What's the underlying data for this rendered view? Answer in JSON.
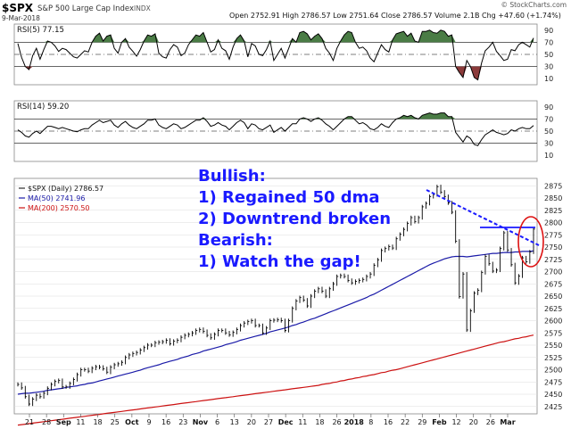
{
  "header": {
    "symbol": "$SPX",
    "name": "S&P 500 Large Cap Index",
    "exchange": "INDX",
    "date": "9-Mar-2018",
    "ohlc": "Open 2752.91  High 2786.57  Low 2751.64  Close 2786.57  Volume 2.1B  Chg +47.60 (+1.74%)",
    "watermark": "© StockCharts.com"
  },
  "colors": {
    "price": "#000000",
    "ma50": "#1a1aa8",
    "ma200": "#cc1111",
    "rsi_fill": "#4a7c45",
    "rsi_low_fill": "#8b3a3a",
    "annotation": "#1a1aff",
    "circle": "#dd1111",
    "grid": "#b8b8b8",
    "panel_bg": "#ffffff"
  },
  "annotation": {
    "lines": [
      "Bullish:",
      "1) Regained 50 dma",
      "2) Downtrend broken",
      "Bearish:",
      "1) Watch the gap!"
    ]
  },
  "x_labels": [
    "21",
    "28",
    "Sep",
    "11",
    "18",
    "25",
    "Oct",
    "9",
    "16",
    "23",
    "Nov",
    "6",
    "13",
    "20",
    "27",
    "Dec",
    "11",
    "18",
    "26",
    "2018",
    "8",
    "16",
    "22",
    "29",
    "Feb",
    "12",
    "20",
    "26",
    "Mar"
  ],
  "chart_data": [
    {
      "type": "line",
      "panel": "rsi5",
      "legend": "RSI(5) 77.15",
      "y_ticks": [
        10,
        30,
        50,
        70,
        90
      ],
      "ylim": [
        0,
        100
      ],
      "reference_lines": [
        30,
        50,
        70
      ],
      "values": [
        68,
        45,
        30,
        25,
        48,
        60,
        42,
        58,
        72,
        70,
        64,
        55,
        60,
        58,
        52,
        46,
        44,
        50,
        56,
        54,
        70,
        80,
        85,
        72,
        80,
        82,
        60,
        52,
        70,
        76,
        62,
        55,
        47,
        58,
        72,
        82,
        80,
        84,
        52,
        46,
        44,
        58,
        66,
        62,
        48,
        52,
        66,
        74,
        82,
        80,
        86,
        70,
        54,
        58,
        74,
        60,
        56,
        42,
        62,
        76,
        82,
        72,
        46,
        68,
        64,
        50,
        48,
        58,
        72,
        40,
        50,
        60,
        44,
        60,
        76,
        70,
        86,
        88,
        84,
        74,
        80,
        84,
        76,
        60,
        52,
        40,
        60,
        72,
        82,
        88,
        86,
        70,
        60,
        62,
        56,
        44,
        38,
        52,
        66,
        58,
        54,
        74,
        84,
        86,
        88,
        80,
        85,
        72,
        70,
        88,
        88,
        90,
        86,
        85,
        90,
        88,
        80,
        82,
        30,
        20,
        12,
        40,
        30,
        12,
        8,
        36,
        56,
        62,
        70,
        55,
        48,
        40,
        42,
        58,
        56,
        66,
        70,
        66,
        62,
        77
      ],
      "value": 77.15
    },
    {
      "type": "line",
      "panel": "rsi14",
      "legend": "RSI(14) 59.20",
      "y_ticks": [
        10,
        30,
        50,
        70,
        90
      ],
      "ylim": [
        0,
        100
      ],
      "reference_lines": [
        30,
        50,
        70
      ],
      "values": [
        52,
        48,
        42,
        40,
        46,
        50,
        46,
        52,
        58,
        58,
        56,
        54,
        56,
        54,
        52,
        50,
        49,
        52,
        54,
        54,
        60,
        64,
        68,
        64,
        66,
        68,
        60,
        56,
        62,
        66,
        60,
        56,
        54,
        58,
        62,
        68,
        68,
        70,
        60,
        56,
        54,
        58,
        62,
        60,
        54,
        56,
        60,
        64,
        68,
        68,
        72,
        66,
        58,
        60,
        64,
        60,
        58,
        52,
        58,
        64,
        68,
        64,
        54,
        62,
        60,
        54,
        52,
        56,
        60,
        48,
        52,
        56,
        50,
        56,
        62,
        62,
        70,
        72,
        70,
        66,
        70,
        72,
        68,
        62,
        58,
        52,
        58,
        64,
        70,
        74,
        74,
        68,
        62,
        64,
        60,
        54,
        52,
        56,
        62,
        58,
        56,
        64,
        70,
        72,
        76,
        74,
        76,
        72,
        70,
        76,
        78,
        80,
        78,
        78,
        80,
        80,
        74,
        74,
        48,
        40,
        32,
        42,
        38,
        28,
        26,
        36,
        44,
        48,
        52,
        48,
        46,
        44,
        46,
        52,
        50,
        54,
        56,
        54,
        54,
        59.2
      ],
      "value": 59.2
    },
    {
      "type": "line",
      "panel": "price",
      "legend": [
        "$SPX (Daily) 2786.57",
        "MA(50) 2741.96",
        "MA(200) 2570.50"
      ],
      "y_ticks": [
        2425,
        2450,
        2475,
        2500,
        2525,
        2550,
        2575,
        2600,
        2625,
        2650,
        2675,
        2700,
        2725,
        2750,
        2775,
        2800,
        2825,
        2850,
        2875
      ],
      "ylim": [
        2410,
        2890
      ],
      "series": [
        {
          "name": "$SPX (Daily) 2786.57",
          "values": [
            2470,
            2463,
            2445,
            2430,
            2440,
            2448,
            2445,
            2452,
            2462,
            2470,
            2476,
            2478,
            2465,
            2465,
            2472,
            2480,
            2490,
            2500,
            2500,
            2497,
            2503,
            2506,
            2505,
            2502,
            2495,
            2505,
            2510,
            2512,
            2515,
            2525,
            2530,
            2533,
            2535,
            2540,
            2545,
            2550,
            2550,
            2555,
            2556,
            2557,
            2560,
            2553,
            2558,
            2560,
            2566,
            2570,
            2572,
            2575,
            2580,
            2582,
            2578,
            2570,
            2565,
            2572,
            2580,
            2580,
            2575,
            2571,
            2576,
            2582,
            2590,
            2595,
            2598,
            2600,
            2590,
            2590,
            2575,
            2585,
            2600,
            2601,
            2602,
            2600,
            2580,
            2600,
            2625,
            2640,
            2647,
            2642,
            2630,
            2650,
            2660,
            2665,
            2660,
            2650,
            2665,
            2675,
            2690,
            2692,
            2690,
            2682,
            2677,
            2680,
            2682,
            2684,
            2690,
            2695,
            2713,
            2724,
            2743,
            2747,
            2751,
            2748,
            2767,
            2776,
            2786,
            2798,
            2810,
            2802,
            2810,
            2832,
            2839,
            2853,
            2857,
            2873,
            2862,
            2853,
            2840,
            2821,
            2762,
            2649,
            2695,
            2581,
            2620,
            2656,
            2662,
            2698,
            2731,
            2716,
            2701,
            2703,
            2747,
            2779,
            2744,
            2714,
            2677,
            2691,
            2728,
            2720,
            2740,
            2786.57
          ]
        },
        {
          "name": "MA(50) 2741.96",
          "values": [
            2450,
            2451,
            2452,
            2452,
            2453,
            2454,
            2455,
            2456,
            2458,
            2459,
            2460,
            2461,
            2462,
            2464,
            2465,
            2466,
            2467,
            2469,
            2470,
            2472,
            2473,
            2475,
            2477,
            2479,
            2481,
            2483,
            2485,
            2487,
            2489,
            2491,
            2493,
            2495,
            2497,
            2499,
            2502,
            2504,
            2506,
            2508,
            2510,
            2513,
            2515,
            2517,
            2519,
            2521,
            2524,
            2526,
            2528,
            2531,
            2533,
            2535,
            2538,
            2540,
            2542,
            2544,
            2546,
            2548,
            2551,
            2553,
            2555,
            2557,
            2560,
            2562,
            2564,
            2566,
            2568,
            2570,
            2572,
            2574,
            2577,
            2579,
            2581,
            2583,
            2585,
            2587,
            2590,
            2592,
            2595,
            2597,
            2600,
            2603,
            2605,
            2608,
            2611,
            2614,
            2617,
            2620,
            2623,
            2626,
            2629,
            2632,
            2635,
            2638,
            2641,
            2644,
            2647,
            2651,
            2654,
            2658,
            2662,
            2666,
            2670,
            2674,
            2678,
            2682,
            2686,
            2690,
            2694,
            2698,
            2702,
            2706,
            2710,
            2714,
            2717,
            2720,
            2723,
            2726,
            2728,
            2730,
            2731,
            2731,
            2731,
            2730,
            2731,
            2732,
            2733,
            2734,
            2735,
            2736,
            2737,
            2737,
            2738,
            2739,
            2739,
            2739,
            2740,
            2740,
            2741,
            2741,
            2741,
            2741.96
          ]
        },
        {
          "name": "MA(200) 2570.50",
          "values": [
            2387,
            2388,
            2389,
            2390,
            2391,
            2392,
            2393,
            2394,
            2395,
            2396,
            2397,
            2398,
            2399,
            2400,
            2401,
            2402,
            2403,
            2404,
            2405,
            2406,
            2407,
            2408,
            2409,
            2410,
            2411,
            2412,
            2413,
            2414,
            2415,
            2416,
            2417,
            2418,
            2419,
            2420,
            2421,
            2422,
            2423,
            2424,
            2425,
            2426,
            2427,
            2428,
            2429,
            2430,
            2431,
            2432,
            2433,
            2434,
            2435,
            2436,
            2437,
            2438,
            2439,
            2440,
            2441,
            2442,
            2443,
            2444,
            2445,
            2446,
            2447,
            2448,
            2449,
            2450,
            2451,
            2452,
            2453,
            2454,
            2455,
            2456,
            2457,
            2458,
            2459,
            2460,
            2461,
            2462,
            2463,
            2464,
            2465,
            2466,
            2467,
            2468,
            2470,
            2471,
            2472,
            2474,
            2475,
            2477,
            2478,
            2480,
            2481,
            2483,
            2484,
            2486,
            2487,
            2489,
            2490,
            2492,
            2494,
            2495,
            2497,
            2499,
            2500,
            2502,
            2504,
            2506,
            2508,
            2510,
            2512,
            2514,
            2516,
            2518,
            2520,
            2522,
            2524,
            2526,
            2528,
            2530,
            2532,
            2534,
            2536,
            2538,
            2540,
            2542,
            2544,
            2546,
            2548,
            2550,
            2552,
            2554,
            2556,
            2557,
            2559,
            2561,
            2563,
            2564,
            2566,
            2567,
            2569,
            2570.5
          ]
        }
      ]
    }
  ]
}
